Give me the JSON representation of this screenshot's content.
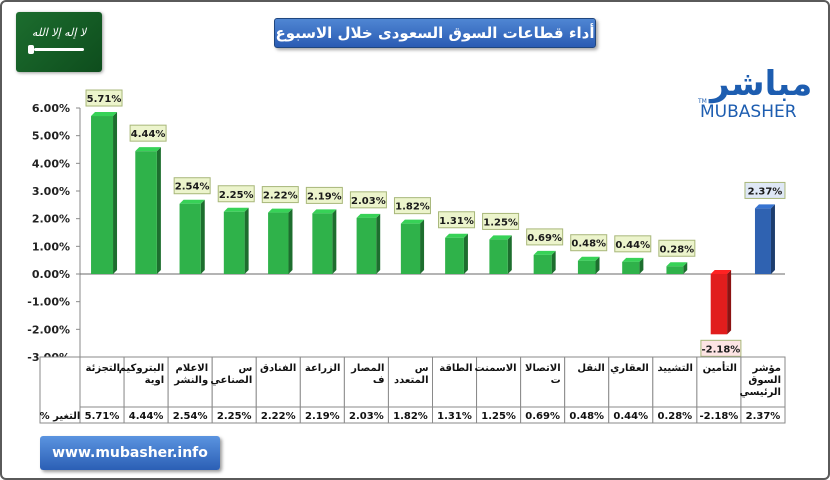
{
  "title": "أداء قطاعات السوق السعودى خلال الاسبوع",
  "flag_text": "لا إله إلا الله",
  "logo": {
    "arabic": "مباشر",
    "english": "MUBASHER",
    "tm": "TM"
  },
  "website": "www.mubasher.info",
  "row_label": "التغير %",
  "colors": {
    "positive": "#2fb24a",
    "negative": "#e11d1d",
    "index": "#2f62b1",
    "label_fill": "#ecf4cc",
    "label_fill_index": "#dfe8f6",
    "label_fill_negative": "#fde4e4"
  },
  "chart_data": {
    "type": "bar",
    "categories": [
      "التجزئة",
      "البتروكيماوية",
      "الاعلام والنشر",
      "س الصناعي",
      "الفنادق",
      "الزراعة",
      "المصارف",
      "س المتعدد",
      "الطاقة",
      "الاسمنت",
      "الاتصالات",
      "النقل",
      "العقاري",
      "التشييد",
      "التأمين",
      "مؤشر السوق الرئيسي"
    ],
    "category_lines": [
      [
        "التجزئة"
      ],
      [
        "البتروكيم",
        "اوية"
      ],
      [
        "الاعلام",
        "والنشر"
      ],
      [
        "س",
        "الصناعي"
      ],
      [
        "الفنادق"
      ],
      [
        "الزراعة"
      ],
      [
        "المصار",
        "ف"
      ],
      [
        "س",
        "المتعدد"
      ],
      [
        "الطاقة"
      ],
      [
        "الاسمنت"
      ],
      [
        "الاتصالا",
        "ت"
      ],
      [
        "النقل"
      ],
      [
        "العقاري"
      ],
      [
        "التشييد"
      ],
      [
        "التأمين"
      ],
      [
        "مؤشر",
        "السوق",
        "الرئيسي"
      ]
    ],
    "values": [
      5.71,
      4.44,
      2.54,
      2.25,
      2.22,
      2.19,
      2.03,
      1.82,
      1.31,
      1.25,
      0.69,
      0.48,
      0.44,
      0.28,
      -2.18,
      2.37
    ],
    "value_labels": [
      "5.71%",
      "4.44%",
      "2.54%",
      "2.25%",
      "2.22%",
      "2.19%",
      "2.03%",
      "1.82%",
      "1.31%",
      "1.25%",
      "0.69%",
      "0.48%",
      "0.44%",
      "0.28%",
      "-2.18%",
      "2.37%"
    ],
    "ylim": [
      -3,
      6
    ],
    "yticks": [
      "6.00%",
      "5.00%",
      "4.00%",
      "3.00%",
      "2.00%",
      "1.00%",
      "0.00%",
      "-1.00%",
      "-2.00%",
      "-3.00%"
    ],
    "ytick_values": [
      6,
      5,
      4,
      3,
      2,
      1,
      0,
      -1,
      -2,
      -3
    ],
    "grid": false,
    "legend": "none"
  }
}
